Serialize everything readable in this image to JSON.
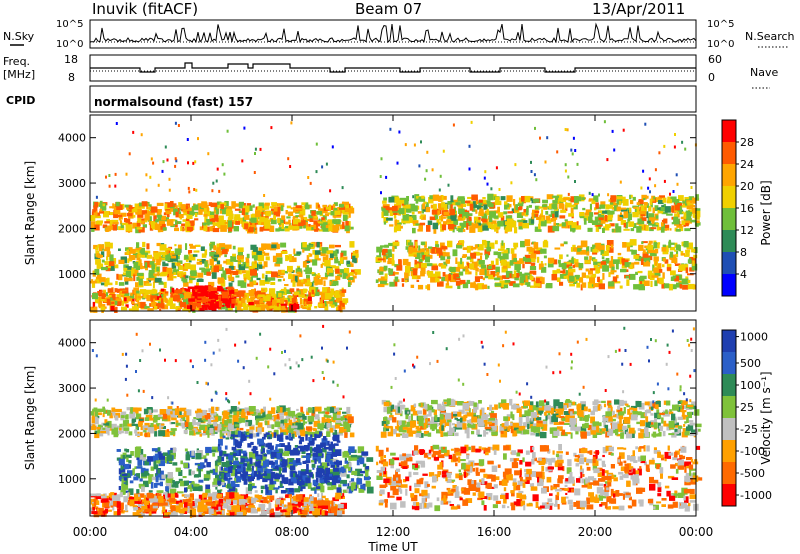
{
  "header": {
    "station": "Inuvik (fitACF)",
    "beam": "Beam 07",
    "date": "13/Apr/2011"
  },
  "summary": {
    "nsky_label": "N.Sky",
    "nsky_ticks": [
      "10^5",
      "10^0"
    ],
    "nsearch_label": "N.Search",
    "nsearch_ticks": [
      "10^5",
      "10^0"
    ],
    "freq_label_1": "Freq.",
    "freq_label_2": "[MHz]",
    "freq_ticks": [
      "18",
      "8"
    ],
    "nave_label": "Nave",
    "nave_ticks": [
      "60",
      "0"
    ],
    "cpid_label": "CPID",
    "cpid_value": "normalsound (fast) 157"
  },
  "colors": {
    "power": [
      "#0000ff",
      "#1f4fb4",
      "#2e8b57",
      "#6fbf3a",
      "#f0d000",
      "#ffa500",
      "#ff5a00",
      "#ff0000"
    ],
    "velocity": [
      "#1f3fb0",
      "#2b5fc8",
      "#2e8b57",
      "#7fc23a",
      "#c0c0c0",
      "#ffa000",
      "#ff6a00",
      "#ff0000"
    ]
  },
  "chart_data": [
    {
      "type": "heatmap",
      "panel": "power",
      "title": "",
      "xlabel": "",
      "ylabel": "Slant Range [km]",
      "xlim": [
        0,
        24
      ],
      "ylim": [
        180,
        4500
      ],
      "y_ticks": [
        "1000",
        "2000",
        "3000",
        "4000"
      ],
      "y_tick_values": [
        1000,
        2000,
        3000,
        4000
      ],
      "colorbar_label": "Power [dB]",
      "colorbar_ticks": [
        "4",
        "8",
        "12",
        "16",
        "20",
        "24",
        "28"
      ],
      "bands": [
        {
          "t0": 0.0,
          "t1": 10.3,
          "r0": 1950,
          "r1": 2550,
          "level": 0.62
        },
        {
          "t0": 11.5,
          "t1": 24.0,
          "r0": 1950,
          "r1": 2700,
          "level": 0.58
        },
        {
          "t0": 0.0,
          "t1": 10.5,
          "r0": 750,
          "r1": 1650,
          "level": 0.55
        },
        {
          "t0": 11.3,
          "t1": 24.0,
          "r0": 700,
          "r1": 1700,
          "level": 0.6
        },
        {
          "t0": 0.0,
          "t1": 10.0,
          "r0": 200,
          "r1": 650,
          "level": 0.68
        },
        {
          "t0": 3.8,
          "t1": 5.6,
          "r0": 220,
          "r1": 700,
          "level": 0.95
        }
      ]
    },
    {
      "type": "heatmap",
      "panel": "velocity",
      "title": "",
      "xlabel": "Time UT",
      "ylabel": "Slant Range [km]",
      "xlim": [
        0,
        24
      ],
      "ylim": [
        180,
        4500
      ],
      "x_ticks": [
        "00:00",
        "04:00",
        "08:00",
        "12:00",
        "16:00",
        "20:00",
        "00:00"
      ],
      "y_ticks": [
        "1000",
        "2000",
        "3000",
        "4000"
      ],
      "y_tick_values": [
        1000,
        2000,
        3000,
        4000
      ],
      "colorbar_label": "Velocity [m s⁻¹]",
      "colorbar_ticks": [
        "1000",
        "500",
        "100",
        "25",
        "-25",
        "-100",
        "-500",
        "-1000"
      ],
      "bands": [
        {
          "t0": 0.0,
          "t1": 10.3,
          "r0": 1950,
          "r1": 2550,
          "level": 0.55
        },
        {
          "t0": 11.5,
          "t1": 24.0,
          "r0": 1950,
          "r1": 2700,
          "level": 0.55
        },
        {
          "t0": 1.0,
          "t1": 11.0,
          "r0": 700,
          "r1": 1650,
          "level": 0.3
        },
        {
          "t0": 5.0,
          "t1": 9.8,
          "r0": 900,
          "r1": 2000,
          "level": 0.08
        },
        {
          "t0": 11.3,
          "t1": 24.0,
          "r0": 350,
          "r1": 1700,
          "level": 0.7
        },
        {
          "t0": 0.0,
          "t1": 10.0,
          "r0": 200,
          "r1": 650,
          "level": 0.75
        }
      ]
    }
  ]
}
